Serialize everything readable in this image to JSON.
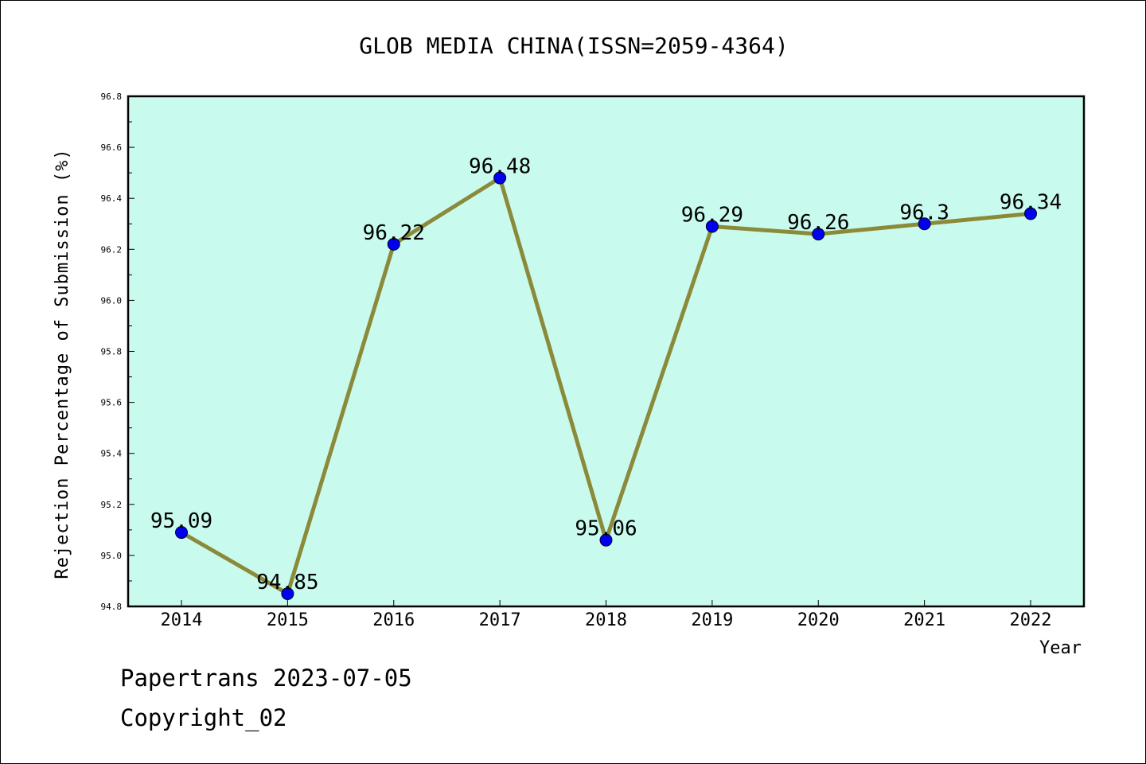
{
  "chart_data": {
    "type": "line",
    "title": "GLOB MEDIA CHINA(ISSN=2059-4364)",
    "xlabel": "Year",
    "ylabel": "Rejection Percentage of Submission (%)",
    "categories": [
      "2014",
      "2015",
      "2016",
      "2017",
      "2018",
      "2019",
      "2020",
      "2021",
      "2022"
    ],
    "series": [
      {
        "values": [
          95.09,
          94.85,
          96.22,
          96.48,
          95.06,
          96.29,
          96.26,
          96.3,
          96.34
        ],
        "labels": [
          "95.09",
          "94.85",
          "96.22",
          "96.48",
          "95.06",
          "96.29",
          "96.26",
          "96.3",
          "96.34"
        ],
        "line_color": "#8b8a3a",
        "marker_color": "#0000ee"
      }
    ],
    "ylim": [
      94.8,
      96.8
    ],
    "yticks": [
      "94.8",
      "95.0",
      "95.2",
      "95.4",
      "95.6",
      "95.8",
      "96.0",
      "96.2",
      "96.4",
      "96.6",
      "96.8"
    ],
    "grid": false,
    "plot_background": "#c8fbee"
  },
  "footer": {
    "line1": "Papertrans 2023-07-05",
    "line2": "Copyright_02"
  }
}
